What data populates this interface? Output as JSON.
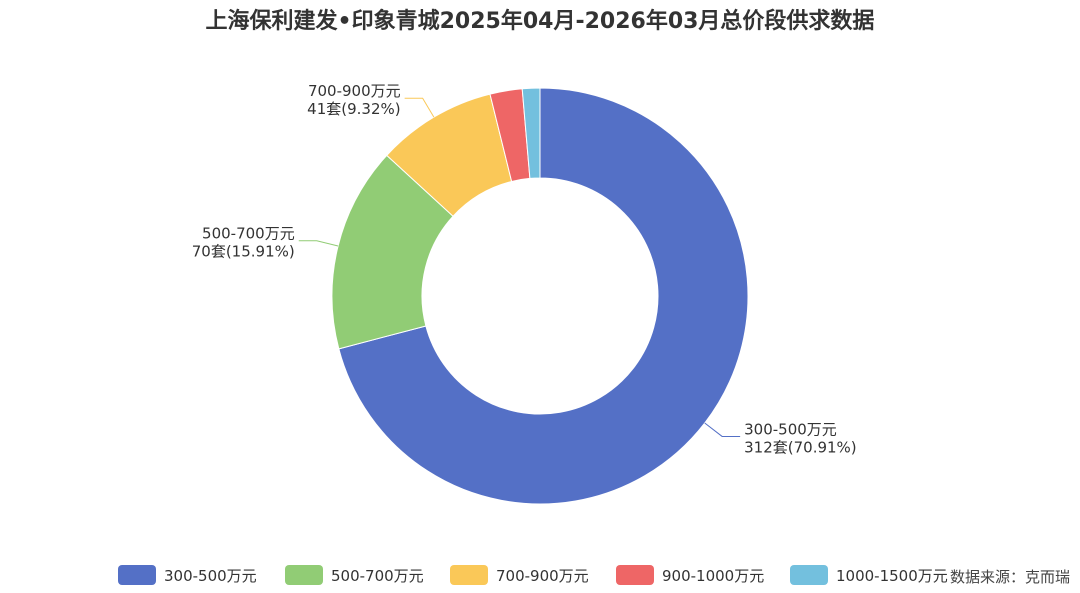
{
  "chart_data": {
    "type": "pie",
    "variant": "donut",
    "title": "上海保利建发•印象青城2025年04月-2026年03月总价段供求数据",
    "slices": [
      {
        "name": "300-500万元",
        "count": 312,
        "unit": "套",
        "percent": "70.91%",
        "label_line1": "300-500万元",
        "label_line2": "312套(70.91%)",
        "color": "#5470c6"
      },
      {
        "name": "500-700万元",
        "count": 70,
        "unit": "套",
        "percent": "15.91%",
        "label_line1": "500-700万元",
        "label_line2": "70套(15.91%)",
        "color": "#91cc75"
      },
      {
        "name": "700-900万元",
        "count": 41,
        "unit": "套",
        "percent": "9.32%",
        "label_line1": "700-900万元",
        "label_line2": "41套(9.32%)",
        "color": "#fac858"
      },
      {
        "name": "900-1000万元",
        "count": 11,
        "unit": "套",
        "percent": "2.50%",
        "color": "#ee6666"
      },
      {
        "name": "1000-1500万元",
        "count": 6,
        "unit": "套",
        "percent": "1.36%",
        "color": "#73c0de"
      }
    ],
    "legend": [
      "300-500万元",
      "500-700万元",
      "700-900万元",
      "900-1000万元",
      "1000-1500万元"
    ],
    "legend_position": "bottom-center"
  },
  "source_text": "数据来源：克而瑞"
}
